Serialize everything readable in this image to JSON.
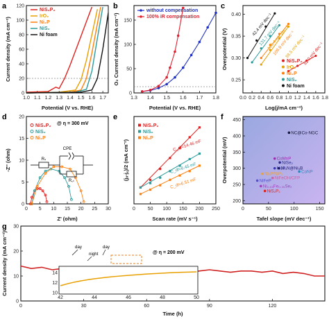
{
  "panels": {
    "a": {
      "label": "a",
      "xlabel": "Potential (V vs. RHE)",
      "ylabel": "Current density (mA cm⁻²)",
      "xticks": [
        "1.0",
        "1.1",
        "1.2",
        "1.3",
        "1.4",
        "1.5",
        "1.6",
        "1.7"
      ],
      "yticks": [
        "0",
        "20",
        "40",
        "60",
        "80",
        "100",
        "120"
      ],
      "legend": [
        "NiS₂P₂",
        "IrO₂",
        "Ni₂P",
        "NiS₂",
        "Ni foam"
      ]
    },
    "b": {
      "label": "b",
      "xlabel": "Potential (V vs. RHE)",
      "ylabel": "O₂ Current density (mA cm⁻²)",
      "xticks": [
        "1.3",
        "1.4",
        "1.5",
        "1.6",
        "1.7",
        "1.8"
      ],
      "yticks": [
        "0",
        "50",
        "100",
        "150"
      ],
      "legend": [
        "without compensation",
        "100% iR compensation"
      ]
    },
    "c": {
      "label": "c",
      "xlabel": "Log(j/mA cm⁻²)",
      "ylabel": "Overpotential (V)",
      "xticks": [
        "0.0",
        "0.2",
        "0.4",
        "0.6",
        "0.8",
        "1.0",
        "1.2",
        "1.4",
        "1.6",
        "1.8"
      ],
      "yticks": [
        "0.25",
        "0.30",
        "0.35",
        "0.40"
      ],
      "legend": [
        "NiS₂P₂",
        "IrO₂",
        "Ni₂P",
        "NiS₂",
        "Ni foam"
      ],
      "slopes": [
        "42.4 mV dec⁻¹",
        "131.7 mV dec⁻¹",
        "105.4 mV dec⁻¹",
        "109.8 mV dec⁻¹",
        "88.5 mV dec⁻¹",
        "82.0 mV dec⁻¹"
      ]
    },
    "d": {
      "label": "d",
      "xlabel": "Z' (ohm)",
      "ylabel": "-Z'' (ohm)",
      "xticks": [
        "0",
        "5",
        "10",
        "15",
        "20",
        "25",
        "30"
      ],
      "yticks": [
        "0",
        "5",
        "10",
        "15",
        "20"
      ],
      "title": "@ η = 300 mV",
      "legend": [
        "NiS₂P₂",
        "NiS₂",
        "Ni₂P"
      ],
      "circuit": {
        "cpe": "CPE",
        "rs": "Rₛ",
        "rct": "R꜀ₜ"
      }
    },
    "e": {
      "label": "e",
      "xlabel": "Scan rate (mV s⁻¹)",
      "ylabel": "(jₐ-j꜀)/2 (mA cm⁻²)",
      "xticks": [
        "0",
        "50",
        "100",
        "150",
        "200",
        "250"
      ],
      "legend": [
        "NiS₂P₂",
        "NiS₂",
        "Ni₂P"
      ],
      "cdl": [
        "C_dl=14.46 mF",
        "C_dl=8.45 mF",
        "C_dl=6.51 mF"
      ]
    },
    "f": {
      "label": "f",
      "xlabel": "Tafel slope (mV dec⁻¹)",
      "ylabel": "Overpotential (mV)",
      "xticks": [
        "0",
        "50",
        "100",
        "150"
      ],
      "yticks": [
        "200",
        "250",
        "300",
        "350",
        "400",
        "450"
      ],
      "points": [
        {
          "name": "NC@Co-NGC",
          "tafel": 90,
          "eta": 410,
          "color": "#1a1a3a"
        },
        {
          "name": "CoMnP",
          "tafel": 62,
          "eta": 330,
          "color": "#9b2fae"
        },
        {
          "name": "NiSe₂",
          "tafel": 72,
          "eta": 318,
          "color": "#2a2a8a"
        },
        {
          "name": "Ni₂P",
          "tafel": 62,
          "eta": 300,
          "color": "#3a3ab0"
        },
        {
          "name": "Ni₃N@Ni₃B",
          "tafel": 70,
          "eta": 300,
          "color": "#1a1a6a"
        },
        {
          "name": "Ni₂P/NiP₂",
          "tafel": 38,
          "eta": 283,
          "color": "#e8a040"
        },
        {
          "name": "CoNP",
          "tafel": 110,
          "eta": 290,
          "color": "#2a8ac0"
        },
        {
          "name": "NiFeOH/CFP",
          "tafel": 58,
          "eta": 270,
          "color": "#d060a0"
        },
        {
          "name": "NiFeP",
          "tafel": 28,
          "eta": 262,
          "color": "#5050d0"
        },
        {
          "name": "Ni₀.₆₅Fe₀.₃₅Se₂",
          "tafel": 35,
          "eta": 245,
          "color": "#a040c0"
        },
        {
          "name": "NiS₂P₂",
          "tafel": 43,
          "eta": 230,
          "color": "#e02020"
        }
      ]
    },
    "g": {
      "label": "g",
      "xlabel": "Time (h)",
      "ylabel": "Current density (mA cm⁻²)",
      "xticks": [
        "0",
        "30",
        "60",
        "90",
        "120"
      ],
      "yticks": [
        "0",
        "10",
        "20",
        "30"
      ],
      "title": "@ η = 200 mV",
      "day1": "day",
      "night": "night",
      "day2": "day",
      "inset": {
        "xticks": [
          "42",
          "44",
          "46",
          "48",
          "50"
        ],
        "yticks": [
          "10",
          "12",
          "14"
        ]
      }
    }
  },
  "chart_data": [
    {
      "type": "line",
      "panel": "a",
      "xlim": [
        1.0,
        1.75
      ],
      "ylim": [
        0,
        120
      ],
      "series": [
        {
          "name": "NiS₂P₂",
          "color": "#e0201e",
          "x": [
            1.0,
            1.2,
            1.27,
            1.3,
            1.35,
            1.4,
            1.45,
            1.5,
            1.55,
            1.6
          ],
          "y": [
            1,
            2,
            8,
            6,
            20,
            38,
            58,
            78,
            98,
            118
          ]
        },
        {
          "name": "IrO₂",
          "color": "#e8a000",
          "x": [
            1.0,
            1.3,
            1.45,
            1.5,
            1.55,
            1.6,
            1.65
          ],
          "y": [
            0,
            1,
            4,
            18,
            45,
            80,
            115
          ]
        },
        {
          "name": "Ni₂P",
          "color": "#ff7f0e",
          "x": [
            1.0,
            1.4,
            1.5,
            1.55,
            1.6,
            1.65,
            1.68
          ],
          "y": [
            0,
            1,
            4,
            20,
            55,
            95,
            118
          ]
        },
        {
          "name": "NiS₂",
          "color": "#2a9a9a",
          "x": [
            1.0,
            1.45,
            1.55,
            1.6,
            1.65,
            1.7
          ],
          "y": [
            0,
            1,
            5,
            30,
            75,
            118
          ]
        },
        {
          "name": "Ni foam",
          "color": "#111111",
          "x": [
            1.0,
            1.5,
            1.6,
            1.65,
            1.7,
            1.75
          ],
          "y": [
            0,
            1,
            4,
            20,
            60,
            110
          ]
        }
      ]
    },
    {
      "type": "line",
      "panel": "b",
      "xlim": [
        1.3,
        1.8
      ],
      "ylim": [
        0,
        180
      ],
      "series": [
        {
          "name": "without compensation",
          "color": "#2030c0",
          "x": [
            1.35,
            1.4,
            1.45,
            1.5,
            1.55,
            1.6,
            1.65,
            1.7,
            1.75,
            1.8
          ],
          "y": [
            3,
            5,
            10,
            18,
            32,
            52,
            78,
            105,
            135,
            165
          ]
        },
        {
          "name": "100% iR compensation",
          "color": "#e02030",
          "x": [
            1.35,
            1.4,
            1.45,
            1.5,
            1.52,
            1.55,
            1.57,
            1.6
          ],
          "y": [
            3,
            6,
            14,
            32,
            52,
            85,
            118,
            175
          ]
        }
      ]
    },
    {
      "type": "scatter",
      "panel": "c",
      "xlim": [
        0,
        1.8
      ],
      "ylim": [
        0.22,
        0.42
      ],
      "series": [
        {
          "name": "NiS₂P₂",
          "color": "#e02020",
          "x": [
            1.0,
            1.2,
            1.4,
            1.6
          ],
          "y": [
            0.27,
            0.282,
            0.294,
            0.305
          ]
        },
        {
          "name": "IrO₂",
          "color": "#e8a000",
          "x": [
            0.4,
            0.6,
            0.8,
            1.0
          ],
          "y": [
            0.285,
            0.318,
            0.345,
            0.372
          ]
        },
        {
          "name": "Ni₂P",
          "color": "#ff7f0e",
          "x": [
            0.4,
            0.6,
            0.8,
            1.0
          ],
          "y": [
            0.3,
            0.33,
            0.355,
            0.378
          ]
        },
        {
          "name": "NiS₂",
          "color": "#2a9a9a",
          "x": [
            0.2,
            0.4,
            0.6,
            0.8
          ],
          "y": [
            0.29,
            0.322,
            0.35,
            0.375
          ]
        },
        {
          "name": "Ni foam",
          "color": "#111111",
          "x": [
            0.1,
            0.3,
            0.5,
            0.7
          ],
          "y": [
            0.3,
            0.34,
            0.372,
            0.402
          ]
        }
      ]
    },
    {
      "type": "scatter",
      "panel": "d",
      "xlim": [
        0,
        30
      ],
      "ylim": [
        0,
        20
      ],
      "series": [
        {
          "name": "NiS₂P₂",
          "color": "#e02020",
          "x": [
            1.5,
            2,
            3,
            4,
            5,
            6,
            7,
            7.5
          ],
          "y": [
            0,
            1.5,
            3,
            3.5,
            3.5,
            3,
            2,
            0.5
          ]
        },
        {
          "name": "NiS₂",
          "color": "#2a9a9a",
          "x": [
            2,
            3,
            5,
            7,
            9,
            12,
            14,
            15.5,
            16.5
          ],
          "y": [
            0,
            3,
            6,
            7.5,
            8,
            7.5,
            6,
            4,
            1
          ]
        },
        {
          "name": "Ni₂P",
          "color": "#ff7f0e",
          "x": [
            2,
            4,
            7,
            10,
            13,
            16,
            18,
            20,
            21
          ],
          "y": [
            0,
            4,
            7,
            8.5,
            8.5,
            8,
            6,
            3,
            0.5
          ]
        }
      ]
    },
    {
      "type": "scatter",
      "panel": "e",
      "xlim": [
        0,
        250
      ],
      "ylim": [
        0,
        4
      ],
      "series": [
        {
          "name": "NiS₂P₂",
          "color": "#e02020",
          "x": [
            20,
            50,
            80,
            110,
            140,
            170,
            200
          ],
          "y": [
            0.75,
            1.1,
            1.6,
            2.1,
            2.55,
            3.05,
            3.5
          ]
        },
        {
          "name": "NiS₂",
          "color": "#2a9a9a",
          "x": [
            20,
            50,
            80,
            110,
            140,
            170,
            200
          ],
          "y": [
            0.75,
            0.95,
            1.2,
            1.5,
            1.75,
            2.05,
            2.3
          ]
        },
        {
          "name": "Ni₂P",
          "color": "#ff7f0e",
          "x": [
            20,
            50,
            80,
            110,
            140,
            170,
            200
          ],
          "y": [
            0.45,
            0.65,
            0.85,
            1.1,
            1.3,
            1.5,
            1.75
          ]
        }
      ]
    },
    {
      "type": "line",
      "panel": "g",
      "xlim": [
        0,
        145
      ],
      "ylim": [
        0,
        30
      ],
      "series": [
        {
          "name": "",
          "color": "#d02020",
          "x": [
            0,
            5,
            10,
            15,
            20,
            25,
            30,
            35,
            40,
            45,
            50,
            55,
            60,
            65,
            70,
            75,
            80,
            85,
            90,
            95,
            100,
            105,
            110,
            115,
            120,
            125,
            130,
            135,
            140,
            145
          ],
          "y": [
            14,
            13,
            13.5,
            12.5,
            13,
            12.5,
            12,
            13,
            12.5,
            11,
            11.5,
            12,
            12.5,
            12,
            12.5,
            12,
            11.5,
            12,
            12.5,
            12,
            11.5,
            12,
            12,
            11.5,
            12,
            11,
            11.5,
            11,
            10,
            10
          ]
        }
      ]
    }
  ]
}
